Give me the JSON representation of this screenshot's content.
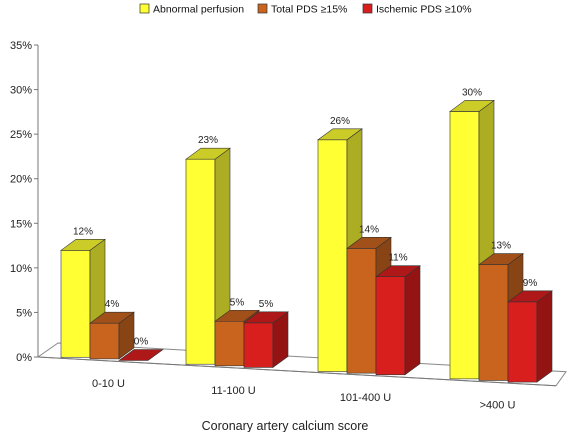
{
  "chart_data": {
    "type": "bar",
    "xlabel": "Coronary artery calcium score",
    "ylabel": "",
    "ylim": [
      0,
      35
    ],
    "yticks": [
      "0%",
      "5%",
      "10%",
      "15%",
      "20%",
      "25%",
      "30%",
      "35%"
    ],
    "categories": [
      "0-10 U",
      "11-100 U",
      "101-400 U",
      ">400 U"
    ],
    "series": [
      {
        "name": "Abnormal perfusion",
        "values": [
          12,
          23,
          26,
          30
        ],
        "labels": [
          "12%",
          "23%",
          "26%",
          "30%"
        ],
        "color": "#FFFF33"
      },
      {
        "name": "Total PDS ≥15%",
        "values": [
          4,
          5,
          14,
          13
        ],
        "labels": [
          "4%",
          "5%",
          "14%",
          "13%"
        ],
        "color": "#C8641E"
      },
      {
        "name": "Ischemic PDS ≥10%",
        "values": [
          0,
          5,
          11,
          9
        ],
        "labels": [
          "0%",
          "5%",
          "11%",
          "9%"
        ],
        "color": "#D91E1E"
      }
    ],
    "legend_position": "top",
    "grid": false,
    "style": "3d-bars"
  }
}
